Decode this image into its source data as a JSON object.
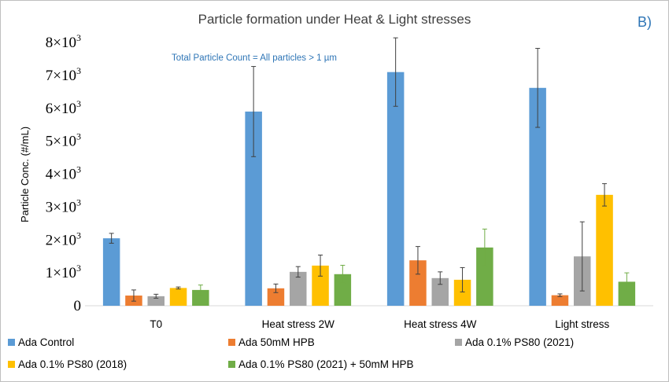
{
  "chart_data": {
    "type": "bar",
    "title": "Particle formation under Heat & Light stresses",
    "panel_label": "B)",
    "annotation": "Total Particle Count = All particles > 1 µm",
    "ylabel": "Particle Conc. (#/mL)",
    "xlabel": "",
    "ylim": [
      0,
      8000
    ],
    "yticks": [
      {
        "value": 0,
        "label": "0",
        "exp": ""
      },
      {
        "value": 1000,
        "label": "1×10",
        "exp": "3"
      },
      {
        "value": 2000,
        "label": "2×10",
        "exp": "3"
      },
      {
        "value": 3000,
        "label": "3×10",
        "exp": "3"
      },
      {
        "value": 4000,
        "label": "4×10",
        "exp": "3"
      },
      {
        "value": 5000,
        "label": "5×10",
        "exp": "3"
      },
      {
        "value": 6000,
        "label": "6×10",
        "exp": "3"
      },
      {
        "value": 7000,
        "label": "7×10",
        "exp": "3"
      },
      {
        "value": 8000,
        "label": "8×10",
        "exp": "3"
      }
    ],
    "grid": false,
    "legend_position": "bottom",
    "categories": [
      "T0",
      "Heat stress 2W",
      "Heat stress 4W",
      "Light stress"
    ],
    "series": [
      {
        "name": "Ada Control",
        "color": "#5b9bd5",
        "errcolor": "#404040",
        "values": [
          2050,
          5900,
          7100,
          6620
        ],
        "errors": [
          150,
          1370,
          1040,
          1200
        ]
      },
      {
        "name": "Ada 50mM HPB",
        "color": "#ed7d31",
        "errcolor": "#404040",
        "values": [
          310,
          530,
          1380,
          320
        ],
        "errors": [
          170,
          130,
          420,
          40
        ]
      },
      {
        "name": "Ada 0.1% PS80 (2021)",
        "color": "#a5a5a5",
        "errcolor": "#404040",
        "values": [
          290,
          1030,
          840,
          1500
        ],
        "errors": [
          60,
          160,
          190,
          1050
        ]
      },
      {
        "name": "Ada 0.1% PS80 (2018)",
        "color": "#ffc000",
        "errcolor": "#404040",
        "values": [
          540,
          1220,
          790,
          3370
        ],
        "errors": [
          30,
          320,
          370,
          340
        ]
      },
      {
        "name": "Ada 0.1% PS80 (2021) + 50mM HPB",
        "color": "#70ad47",
        "errcolor": "#70ad47",
        "values": [
          480,
          960,
          1770,
          730
        ],
        "errors": [
          150,
          270,
          560,
          270
        ]
      }
    ]
  }
}
